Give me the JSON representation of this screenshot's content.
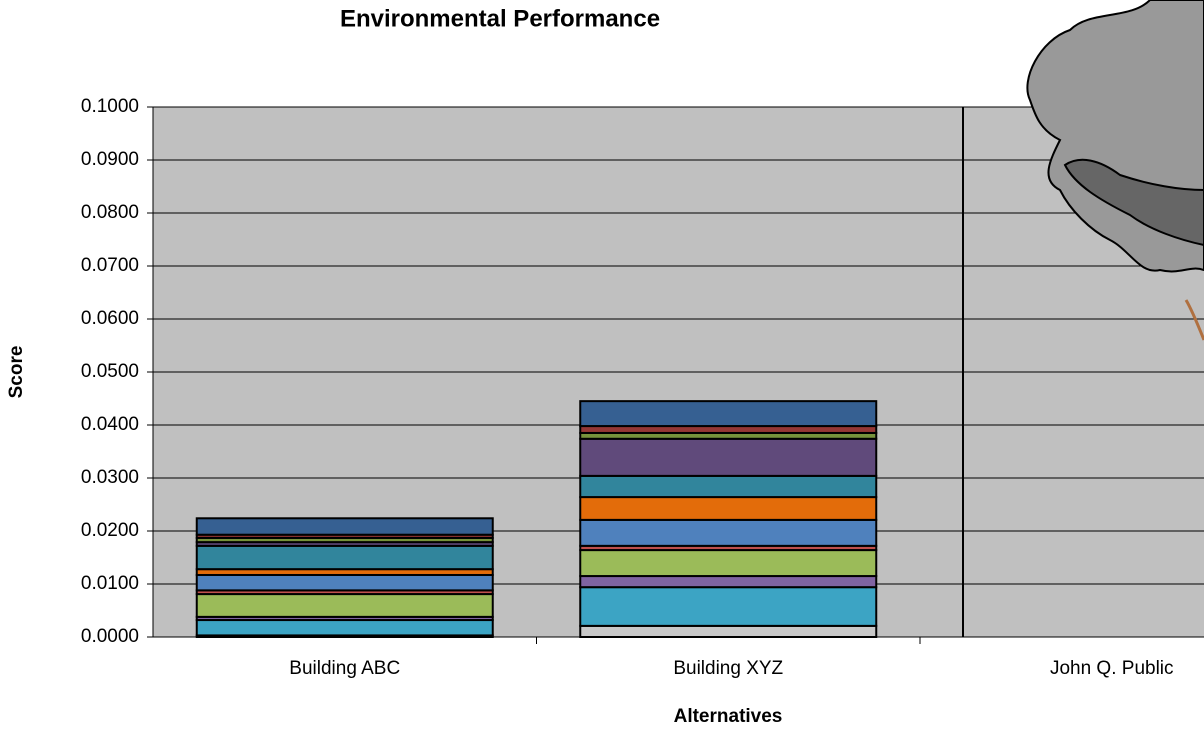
{
  "chart_data": {
    "type": "stacked-bar",
    "title": "Environmental Performance",
    "x_label": "Alternatives",
    "y_label": "Score",
    "categories": [
      "Building ABC",
      "Building XYZ",
      "John Q. Public"
    ],
    "ylim": [
      0,
      0.1
    ],
    "yticks": [
      {
        "value": 0,
        "label": "0.0000"
      },
      {
        "value": 0.01,
        "label": "0.0100"
      },
      {
        "value": 0.02,
        "label": "0.0200"
      },
      {
        "value": 0.03,
        "label": "0.0300"
      },
      {
        "value": 0.04,
        "label": "0.0400"
      },
      {
        "value": 0.05,
        "label": "0.0500"
      },
      {
        "value": 0.06,
        "label": "0.0600"
      },
      {
        "value": 0.07,
        "label": "0.0700"
      },
      {
        "value": 0.08,
        "label": "0.0800"
      },
      {
        "value": 0.09,
        "label": "0.0900"
      },
      {
        "value": 0.1,
        "label": "0.1000"
      }
    ],
    "grid": true,
    "series": [
      {
        "color": "#c8c8c8",
        "values": [
          0.0003,
          0.0021,
          null
        ]
      },
      {
        "color": "#3ca4c4",
        "values": [
          0.0029,
          0.0073,
          null
        ]
      },
      {
        "color": "#8064a2",
        "values": [
          0.0006,
          0.0021,
          null
        ]
      },
      {
        "color": "#9bbb59",
        "values": [
          0.0043,
          0.0049,
          null
        ]
      },
      {
        "color": "#c0504d",
        "values": [
          0.0007,
          0.0008,
          null
        ]
      },
      {
        "color": "#4f81bd",
        "values": [
          0.0029,
          0.0049,
          null
        ]
      },
      {
        "color": "#e36c0a",
        "values": [
          0.0011,
          0.0043,
          null
        ]
      },
      {
        "color": "#31859c",
        "values": [
          0.0044,
          0.004,
          null
        ]
      },
      {
        "color": "#604a7b",
        "values": [
          0.0007,
          0.007,
          null
        ]
      },
      {
        "color": "#77933c",
        "values": [
          0.0008,
          0.0011,
          null
        ]
      },
      {
        "color": "#953735",
        "values": [
          0.0006,
          0.0013,
          null
        ]
      },
      {
        "color": "#366092",
        "values": [
          0.0031,
          0.0047,
          null
        ]
      }
    ]
  }
}
